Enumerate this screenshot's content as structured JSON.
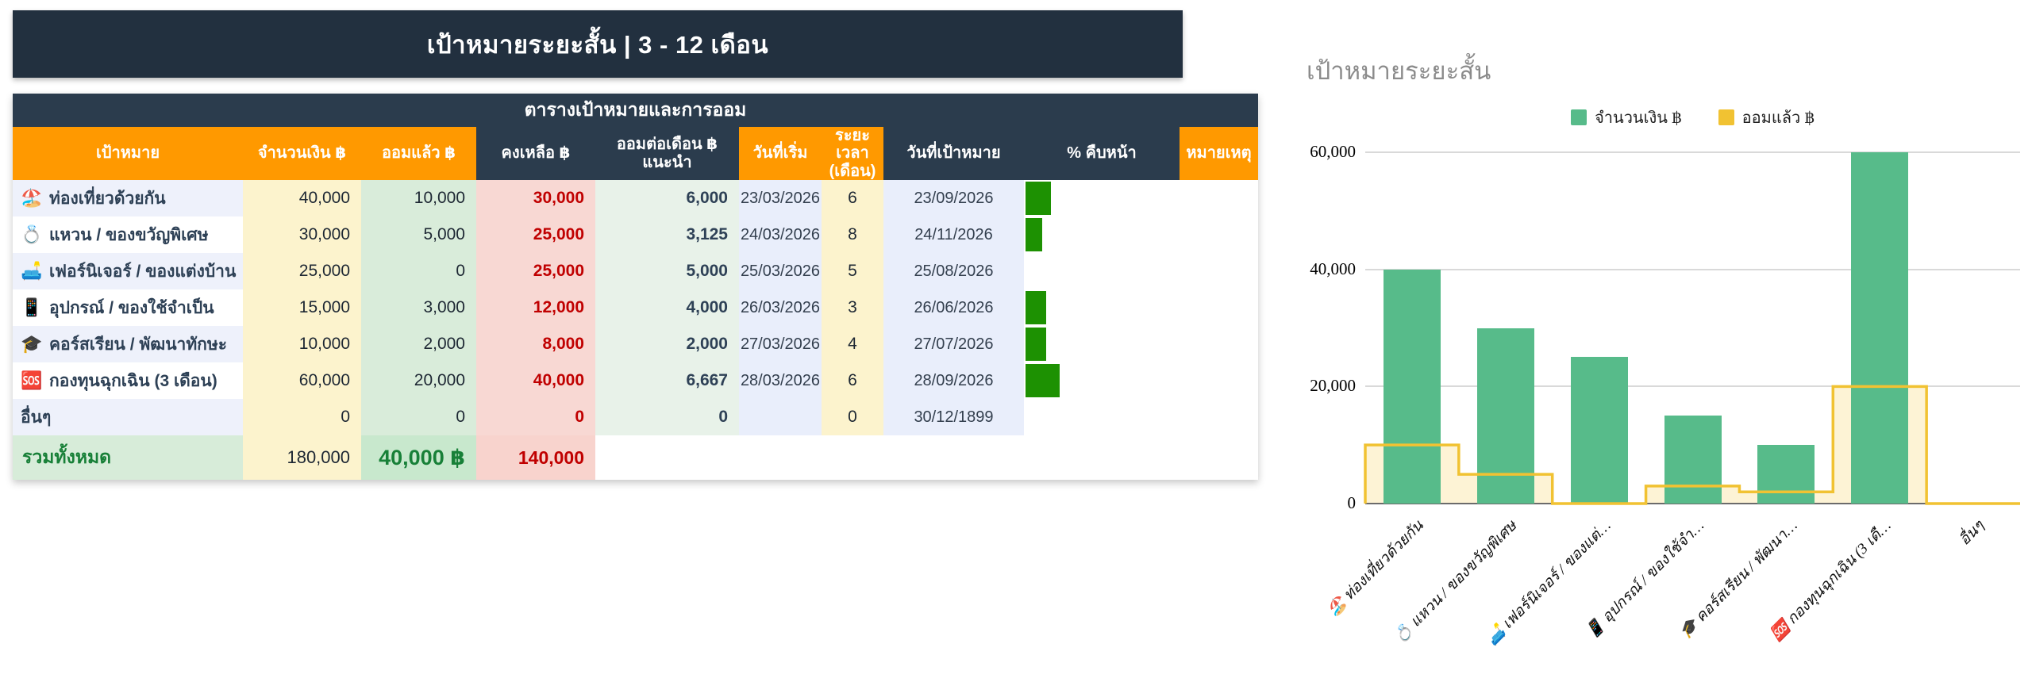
{
  "colors": {
    "navy": "#2b3c4d",
    "title_navy": "#22303f",
    "orange": "#ff9900",
    "progress_bar_green": "#1d9102",
    "chart_bar_green": "#57bb8a",
    "chart_step_yellow": "#f1c232",
    "chart_step_fill": "#fdf3d5",
    "remaining_red": "#c00000",
    "total_green": "#188038"
  },
  "title_bar": {
    "text": "เป้าหมายระยะสั้น  |  3 - 12 เดือน"
  },
  "table": {
    "caption": "ตารางเป้าหมายและการออม",
    "columns": [
      {
        "label": "เป้าหมาย",
        "theme": "orange"
      },
      {
        "label": "จำนวนเงิน ฿",
        "theme": "orange"
      },
      {
        "label": "ออมแล้ว ฿",
        "theme": "orange"
      },
      {
        "label": "คงเหลือ ฿",
        "theme": "navy"
      },
      {
        "label": "ออมต่อเดือน ฿ แนะนำ",
        "theme": "navy"
      },
      {
        "label": "วันที่เริ่ม",
        "theme": "orange"
      },
      {
        "label": "ระยะเวลา (เดือน)",
        "theme": "orange"
      },
      {
        "label": "วันที่เป้าหมาย",
        "theme": "navy"
      },
      {
        "label": "% คืบหน้า",
        "theme": "navy"
      },
      {
        "label": "หมายเหตุ",
        "theme": "orange"
      }
    ],
    "rows": [
      {
        "icon": "🏖️",
        "goal": "ท่องเที่ยวด้วยกัน",
        "amount": "40,000",
        "saved": "10,000",
        "remaining": "30,000",
        "monthly": "6,000",
        "start_date": "23/03/2026",
        "months": "6",
        "target_date": "23/09/2026",
        "progress_pct": 25,
        "note": ""
      },
      {
        "icon": "💍",
        "goal": "แหวน / ของขวัญพิเศษ",
        "amount": "30,000",
        "saved": "5,000",
        "remaining": "25,000",
        "monthly": "3,125",
        "start_date": "24/03/2026",
        "months": "8",
        "target_date": "24/11/2026",
        "progress_pct": 16.7,
        "note": ""
      },
      {
        "icon": "🛋️",
        "goal": "เฟอร์นิเจอร์ / ของแต่งบ้าน",
        "amount": "25,000",
        "saved": "0",
        "remaining": "25,000",
        "monthly": "5,000",
        "start_date": "25/03/2026",
        "months": "5",
        "target_date": "25/08/2026",
        "progress_pct": 0,
        "note": ""
      },
      {
        "icon": "📱",
        "goal": "อุปกรณ์ / ของใช้จำเป็น",
        "amount": "15,000",
        "saved": "3,000",
        "remaining": "12,000",
        "monthly": "4,000",
        "start_date": "26/03/2026",
        "months": "3",
        "target_date": "26/06/2026",
        "progress_pct": 20,
        "note": ""
      },
      {
        "icon": "🎓",
        "goal": "คอร์สเรียน / พัฒนาทักษะ",
        "amount": "10,000",
        "saved": "2,000",
        "remaining": "8,000",
        "monthly": "2,000",
        "start_date": "27/03/2026",
        "months": "4",
        "target_date": "27/07/2026",
        "progress_pct": 20,
        "note": ""
      },
      {
        "icon": "🆘",
        "goal": "กองทุนฉุกเฉิน (3 เดือน)",
        "amount": "60,000",
        "saved": "20,000",
        "remaining": "40,000",
        "monthly": "6,667",
        "start_date": "28/03/2026",
        "months": "6",
        "target_date": "28/09/2026",
        "progress_pct": 33.3,
        "note": ""
      },
      {
        "icon": "",
        "goal": "อื่นๆ",
        "amount": "0",
        "saved": "0",
        "remaining": "0",
        "monthly": "0",
        "start_date": "",
        "months": "0",
        "target_date": "30/12/1899",
        "progress_pct": 0,
        "note": ""
      }
    ],
    "total": {
      "label": "รวมทั้งหมด",
      "amount": "180,000",
      "saved": "40,000 ฿",
      "remaining": "140,000"
    }
  },
  "chart": {
    "title": "เป้าหมายระยะสั้น"
  },
  "chart_data": {
    "type": "combo",
    "title": "เป้าหมายระยะสั้น",
    "categories": [
      "🏖️ ท่องเที่ยวด้วยกัน",
      "💍 แหวน / ของขวัญพิเศษ",
      "🛋️ เฟอร์นิเจอร์ / ของแต่…",
      "📱 อุปกรณ์ / ของใช้จำ…",
      "🎓 คอร์สเรียน / พัฒนา…",
      "🆘 กองทุนฉุกเฉิน (3 เดื…",
      "อื่นๆ"
    ],
    "series": [
      {
        "name": "จำนวนเงิน ฿",
        "type": "column",
        "color": "#57bb8a",
        "values": [
          40000,
          30000,
          25000,
          15000,
          10000,
          60000,
          0
        ]
      },
      {
        "name": "ออมแล้ว ฿",
        "type": "stepped_area",
        "color": "#f1c232",
        "fill": "#fdf3d5",
        "values": [
          10000,
          5000,
          0,
          3000,
          2000,
          20000,
          0
        ]
      }
    ],
    "xlabel": "",
    "ylabel": "",
    "ylim": [
      0,
      60000
    ],
    "yticks": [
      0,
      20000,
      40000,
      60000
    ],
    "ytick_labels": [
      "0",
      "20,000",
      "40,000",
      "60,000"
    ],
    "legend_position": "top",
    "grid": true
  }
}
